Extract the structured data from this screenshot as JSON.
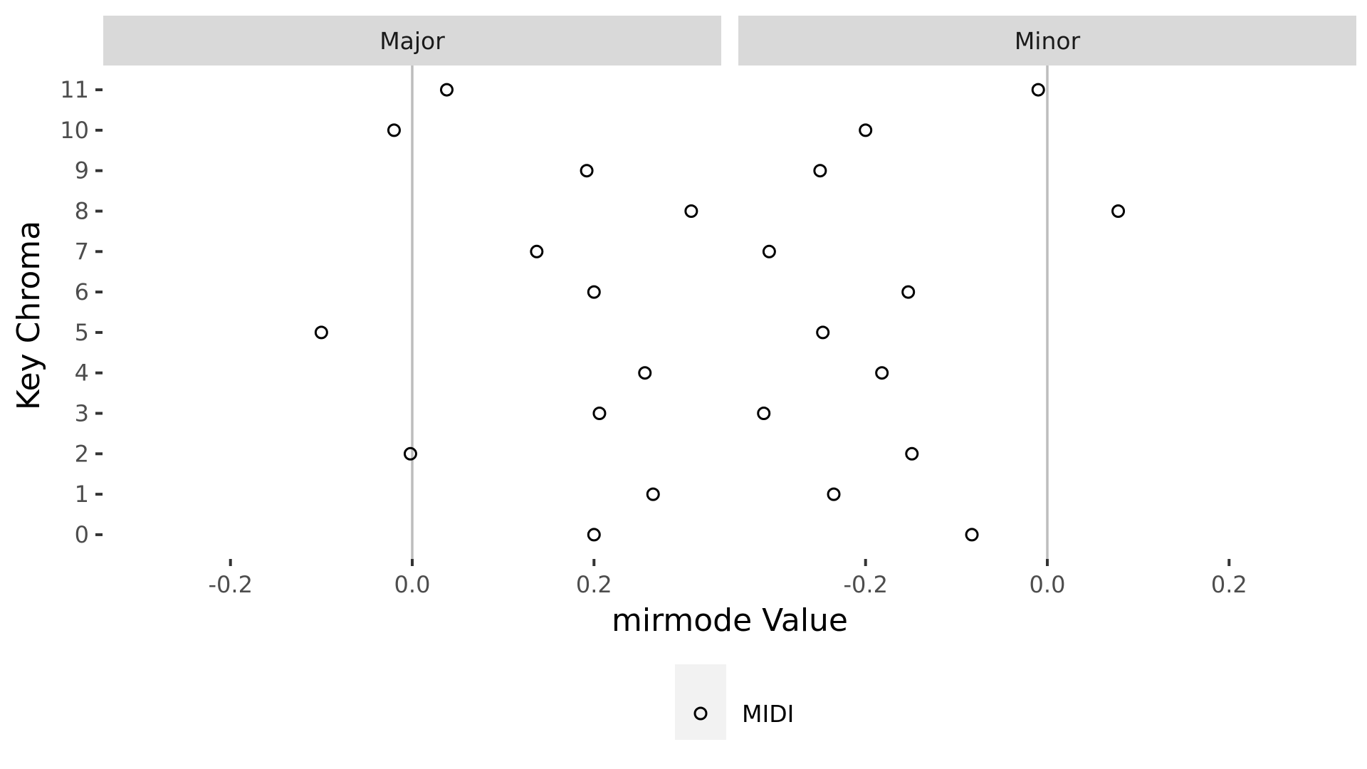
{
  "chart_data": {
    "type": "scatter",
    "xlabel": "mirmode Value",
    "ylabel": "Key Chroma",
    "xlim": [
      -0.34,
      0.34
    ],
    "ylim": [
      -0.6,
      11.6
    ],
    "x_ticks": [
      -0.2,
      0.0,
      0.2
    ],
    "x_tick_labels": [
      "-0.2",
      "0.0",
      "0.2"
    ],
    "y_ticks": [
      0,
      1,
      2,
      3,
      4,
      5,
      6,
      7,
      8,
      9,
      10,
      11
    ],
    "y_tick_labels": [
      "0",
      "1",
      "2",
      "3",
      "4",
      "5",
      "6",
      "7",
      "8",
      "9",
      "10",
      "11"
    ],
    "zero_reference_line": 0.0,
    "grid": false,
    "legend": {
      "position": "bottom",
      "entries": [
        "MIDI"
      ]
    },
    "series_name": "MIDI",
    "panels": [
      {
        "title": "Major",
        "points": [
          {
            "x": 0.2,
            "y": 0
          },
          {
            "x": 0.265,
            "y": 1
          },
          {
            "x": -0.002,
            "y": 2
          },
          {
            "x": 0.206,
            "y": 3
          },
          {
            "x": 0.256,
            "y": 4
          },
          {
            "x": -0.1,
            "y": 5
          },
          {
            "x": 0.2,
            "y": 6
          },
          {
            "x": 0.137,
            "y": 7
          },
          {
            "x": 0.307,
            "y": 8
          },
          {
            "x": 0.192,
            "y": 9
          },
          {
            "x": -0.02,
            "y": 10
          },
          {
            "x": 0.038,
            "y": 11
          }
        ]
      },
      {
        "title": "Minor",
        "points": [
          {
            "x": -0.083,
            "y": 0
          },
          {
            "x": -0.235,
            "y": 1
          },
          {
            "x": -0.149,
            "y": 2
          },
          {
            "x": -0.312,
            "y": 3
          },
          {
            "x": -0.182,
            "y": 4
          },
          {
            "x": -0.247,
            "y": 5
          },
          {
            "x": -0.153,
            "y": 6
          },
          {
            "x": -0.306,
            "y": 7
          },
          {
            "x": 0.078,
            "y": 8
          },
          {
            "x": -0.25,
            "y": 9
          },
          {
            "x": -0.2,
            "y": 10
          },
          {
            "x": -0.01,
            "y": 11
          }
        ]
      }
    ]
  }
}
